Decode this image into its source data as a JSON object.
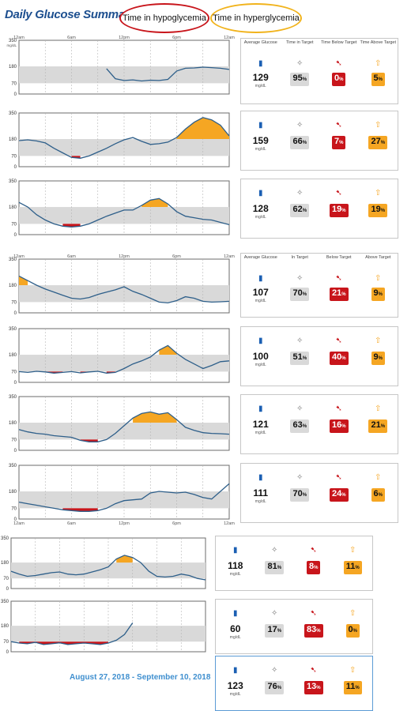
{
  "title": "Daily Glucose Summary",
  "legend": {
    "hypo": "Time in hypoglycemia",
    "hyper": "Time in hyperglycemia"
  },
  "date_range": "August 27, 2018 - September 10, 2018",
  "stat_headers": {
    "avg": "Average Glucose",
    "in": "Time in Target",
    "below_a": "Time Below Target",
    "above_a": "Time Above Target",
    "below_b": "Below Target",
    "above_b": "Above Target",
    "in_b": "In Target",
    "unit": "mg/dL",
    "pct": "%"
  },
  "icons": {
    "avg": "meter-icon",
    "in": "target-icon",
    "below": "down-arrow-icon",
    "above": "up-arrow-icon"
  },
  "colors": {
    "hypo": "#c8151b",
    "hyper": "#f5a623",
    "line": "#2e5f8a",
    "band": "#d9d9d9",
    "accent": "#1d4f8f"
  },
  "stats": [
    {
      "avg": "129",
      "in": "95",
      "below": "0",
      "above": "5"
    },
    {
      "avg": "159",
      "in": "66",
      "below": "7",
      "above": "27"
    },
    {
      "avg": "128",
      "in": "62",
      "below": "19",
      "above": "19"
    },
    {
      "avg": "107",
      "in": "70",
      "below": "21",
      "above": "9"
    },
    {
      "avg": "100",
      "in": "51",
      "below": "40",
      "above": "9"
    },
    {
      "avg": "121",
      "in": "63",
      "below": "16",
      "above": "21"
    },
    {
      "avg": "111",
      "in": "70",
      "below": "24",
      "above": "6"
    },
    {
      "avg": "118",
      "in": "81",
      "below": "8",
      "above": "11"
    },
    {
      "avg": "60",
      "in": "17",
      "below": "83",
      "above": "0"
    },
    {
      "avg": "123",
      "in": "76",
      "below": "13",
      "above": "11"
    }
  ],
  "chart_data": {
    "type": "line",
    "x_ticks": [
      "12am",
      "6am",
      "12pm",
      "6pm",
      "12am"
    ],
    "y_ticks": [
      0,
      70,
      180,
      350
    ],
    "y_unit": "mg/dL",
    "ylim": [
      0,
      350
    ],
    "xlim": [
      0,
      24
    ],
    "target_range": [
      70,
      180
    ],
    "series": [
      {
        "x": [
          10,
          11,
          12,
          13,
          14,
          15,
          16,
          17,
          18,
          19,
          20,
          21,
          22,
          23,
          24
        ],
        "y": [
          165,
          100,
          88,
          92,
          85,
          90,
          88,
          95,
          150,
          168,
          170,
          175,
          172,
          168,
          160
        ]
      },
      {
        "x": [
          0,
          1,
          2,
          3,
          4,
          5,
          6,
          7,
          8,
          9,
          10,
          11,
          12,
          13,
          14,
          15,
          16,
          17,
          18,
          19,
          20,
          21,
          22,
          23,
          24
        ],
        "y": [
          170,
          175,
          168,
          155,
          120,
          90,
          60,
          55,
          70,
          95,
          120,
          150,
          175,
          190,
          165,
          145,
          150,
          160,
          190,
          245,
          290,
          320,
          305,
          270,
          200
        ]
      },
      {
        "x": [
          0,
          1,
          2,
          3,
          4,
          5,
          6,
          7,
          8,
          9,
          10,
          11,
          12,
          13,
          14,
          15,
          16,
          17,
          18,
          19,
          20,
          21,
          22,
          23,
          24
        ],
        "y": [
          210,
          180,
          130,
          95,
          70,
          55,
          50,
          55,
          70,
          95,
          120,
          140,
          160,
          160,
          190,
          225,
          235,
          200,
          150,
          120,
          110,
          100,
          95,
          80,
          65
        ]
      },
      {
        "x": [
          0,
          1,
          2,
          3,
          4,
          5,
          6,
          7,
          8,
          9,
          10,
          11,
          12,
          13,
          14,
          15,
          16,
          17,
          18,
          19,
          20,
          21,
          22,
          23,
          24
        ],
        "y": [
          240,
          210,
          180,
          155,
          135,
          115,
          95,
          90,
          100,
          120,
          135,
          150,
          170,
          140,
          120,
          95,
          70,
          65,
          80,
          105,
          95,
          75,
          70,
          72,
          75
        ]
      },
      {
        "x": [
          0,
          1,
          2,
          3,
          4,
          5,
          6,
          7,
          8,
          9,
          10,
          11,
          12,
          13,
          14,
          15,
          16,
          17,
          18,
          19,
          20,
          21,
          22,
          23,
          24
        ],
        "y": [
          70,
          65,
          72,
          68,
          60,
          65,
          70,
          62,
          68,
          72,
          60,
          65,
          90,
          120,
          140,
          165,
          210,
          240,
          190,
          150,
          120,
          90,
          110,
          135,
          140
        ]
      },
      {
        "x": [
          0,
          1,
          2,
          3,
          4,
          5,
          6,
          7,
          8,
          9,
          10,
          11,
          12,
          13,
          14,
          15,
          16,
          17,
          18,
          19,
          20,
          21,
          22,
          23,
          24
        ],
        "y": [
          135,
          120,
          110,
          105,
          95,
          90,
          85,
          65,
          55,
          55,
          70,
          110,
          160,
          210,
          240,
          250,
          235,
          245,
          200,
          150,
          130,
          115,
          110,
          108,
          105
        ]
      },
      {
        "x": [
          0,
          1,
          2,
          3,
          4,
          5,
          6,
          7,
          8,
          9,
          10,
          11,
          12,
          13,
          14,
          15,
          16,
          17,
          18,
          19,
          20,
          21,
          22,
          23,
          24
        ],
        "y": [
          110,
          100,
          90,
          80,
          70,
          60,
          55,
          50,
          50,
          55,
          70,
          100,
          120,
          125,
          130,
          170,
          180,
          175,
          170,
          175,
          160,
          140,
          130,
          180,
          230
        ]
      },
      {
        "x": [
          0,
          1,
          2,
          3,
          4,
          5,
          6,
          7,
          8,
          9,
          10,
          11,
          12,
          13,
          14,
          15,
          16,
          17,
          18,
          19,
          20,
          21,
          22,
          23,
          24
        ],
        "y": [
          120,
          100,
          85,
          90,
          100,
          110,
          115,
          100,
          95,
          100,
          115,
          130,
          150,
          205,
          230,
          215,
          180,
          120,
          85,
          80,
          85,
          100,
          90,
          70,
          60
        ]
      },
      {
        "x": [
          0,
          1,
          2,
          3,
          4,
          5,
          6,
          7,
          8,
          9,
          10,
          11,
          12,
          13,
          14,
          15
        ],
        "y": [
          70,
          60,
          55,
          65,
          50,
          55,
          62,
          50,
          55,
          60,
          55,
          50,
          60,
          80,
          120,
          200
        ]
      }
    ]
  }
}
